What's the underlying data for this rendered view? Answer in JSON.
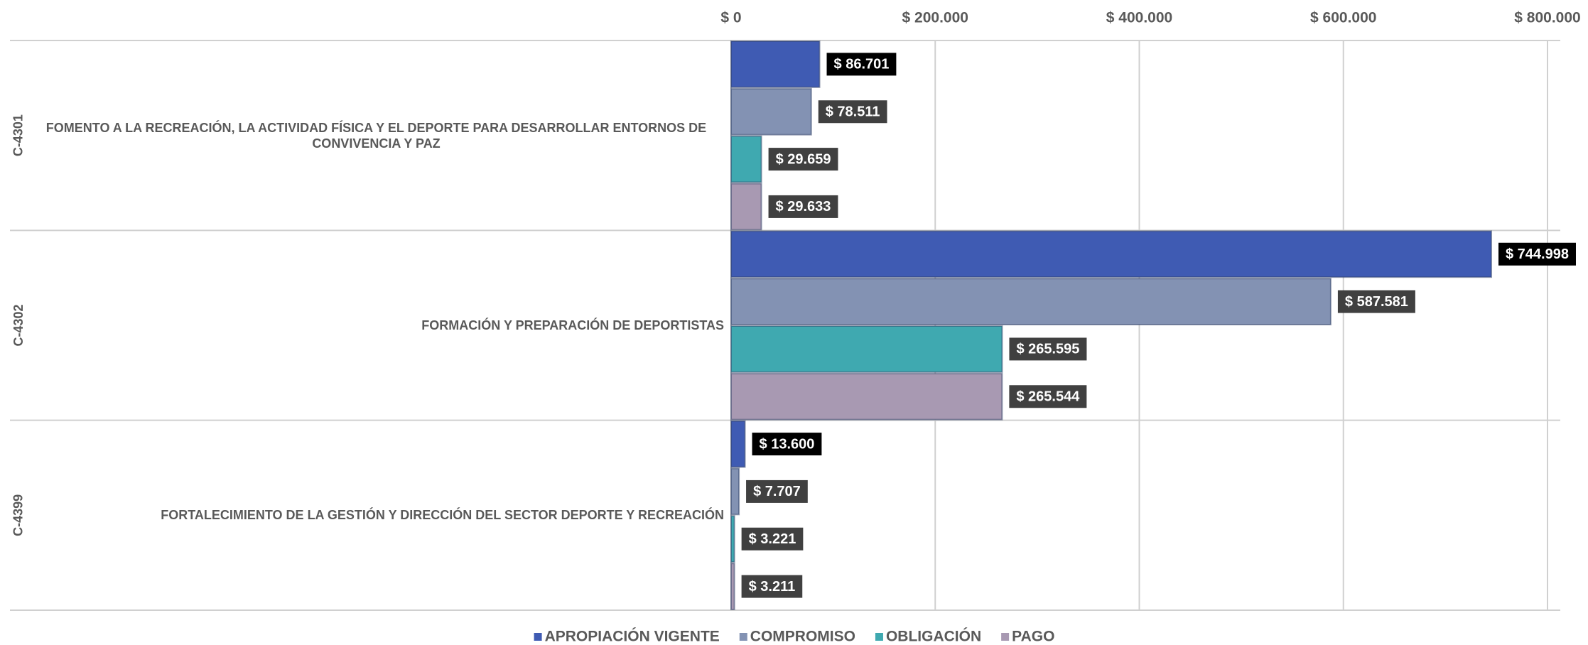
{
  "chart_data": {
    "type": "bar",
    "orientation": "horizontal",
    "category_codes": [
      "C-4301",
      "C-4302",
      "C-4399"
    ],
    "categories": [
      "FOMENTO A LA RECREACIÓN, LA ACTIVIDAD FÍSICA Y EL DEPORTE PARA DESARROLLAR ENTORNOS DE CONVIVENCIA Y PAZ",
      "FORMACIÓN Y PREPARACIÓN DE DEPORTISTAS",
      "FORTALECIMIENTO DE LA GESTIÓN Y DIRECCIÓN DEL SECTOR DEPORTE Y RECREACIÓN"
    ],
    "series": [
      {
        "name": "APROPIACIÓN VIGENTE",
        "color": "#3f5bb3",
        "values": [
          86701,
          744998,
          13600
        ],
        "value_labels": [
          "$ 86.701",
          "$ 744.998",
          "$ 13.600"
        ]
      },
      {
        "name": "COMPROMISO",
        "color": "#8392b3",
        "values": [
          78511,
          587581,
          7707
        ],
        "value_labels": [
          "$ 78.511",
          "$ 587.581",
          "$ 7.707"
        ]
      },
      {
        "name": "OBLIGACIÓN",
        "color": "#3fa9b0",
        "values": [
          29659,
          265595,
          3221
        ],
        "value_labels": [
          "$ 29.659",
          "$ 265.595",
          "$ 3.221"
        ]
      },
      {
        "name": "PAGO",
        "color": "#a899b2",
        "values": [
          29633,
          265544,
          3211
        ],
        "value_labels": [
          "$ 29.633",
          "$ 265.544",
          "$ 3.211"
        ]
      }
    ],
    "xlim": [
      0,
      800000
    ],
    "xticks": [
      {
        "value": 0,
        "label": "$ 0"
      },
      {
        "value": 200000,
        "label": "$ 200.000"
      },
      {
        "value": 400000,
        "label": "$ 400.000"
      },
      {
        "value": 600000,
        "label": "$ 600.000"
      },
      {
        "value": 800000,
        "label": "$ 800.000"
      }
    ],
    "grid": true,
    "legend": "bottom"
  }
}
